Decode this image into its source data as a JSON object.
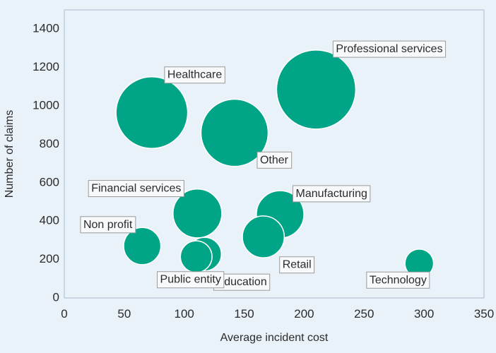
{
  "chart_data": {
    "type": "scatter",
    "title": "",
    "xlabel": "Average incident cost",
    "ylabel": "Number of claims",
    "xlim": [
      0,
      350
    ],
    "ylim": [
      0,
      1500
    ],
    "xticks": [
      0,
      50,
      100,
      150,
      200,
      250,
      300,
      350
    ],
    "yticks": [
      0,
      200,
      400,
      600,
      800,
      1000,
      1200,
      1400
    ],
    "grid": false,
    "bubble_color": "#00a487",
    "background_color": "#e9f1f9",
    "points": [
      {
        "label": "Professional services",
        "x": 210,
        "y": 1085,
        "size": 100
      },
      {
        "label": "Healthcare",
        "x": 73,
        "y": 965,
        "size": 82
      },
      {
        "label": "Other",
        "x": 142,
        "y": 860,
        "size": 72
      },
      {
        "label": "Manufacturing",
        "x": 180,
        "y": 435,
        "size": 36
      },
      {
        "label": "Financial services",
        "x": 111,
        "y": 440,
        "size": 38
      },
      {
        "label": "Retail",
        "x": 166,
        "y": 318,
        "size": 28
      },
      {
        "label": "Non profit",
        "x": 65,
        "y": 270,
        "size": 22
      },
      {
        "label": "Education",
        "x": 117,
        "y": 228,
        "size": 18
      },
      {
        "label": "Public entity",
        "x": 110,
        "y": 215,
        "size": 16
      },
      {
        "label": "Technology",
        "x": 296,
        "y": 180,
        "size": 13
      }
    ]
  }
}
